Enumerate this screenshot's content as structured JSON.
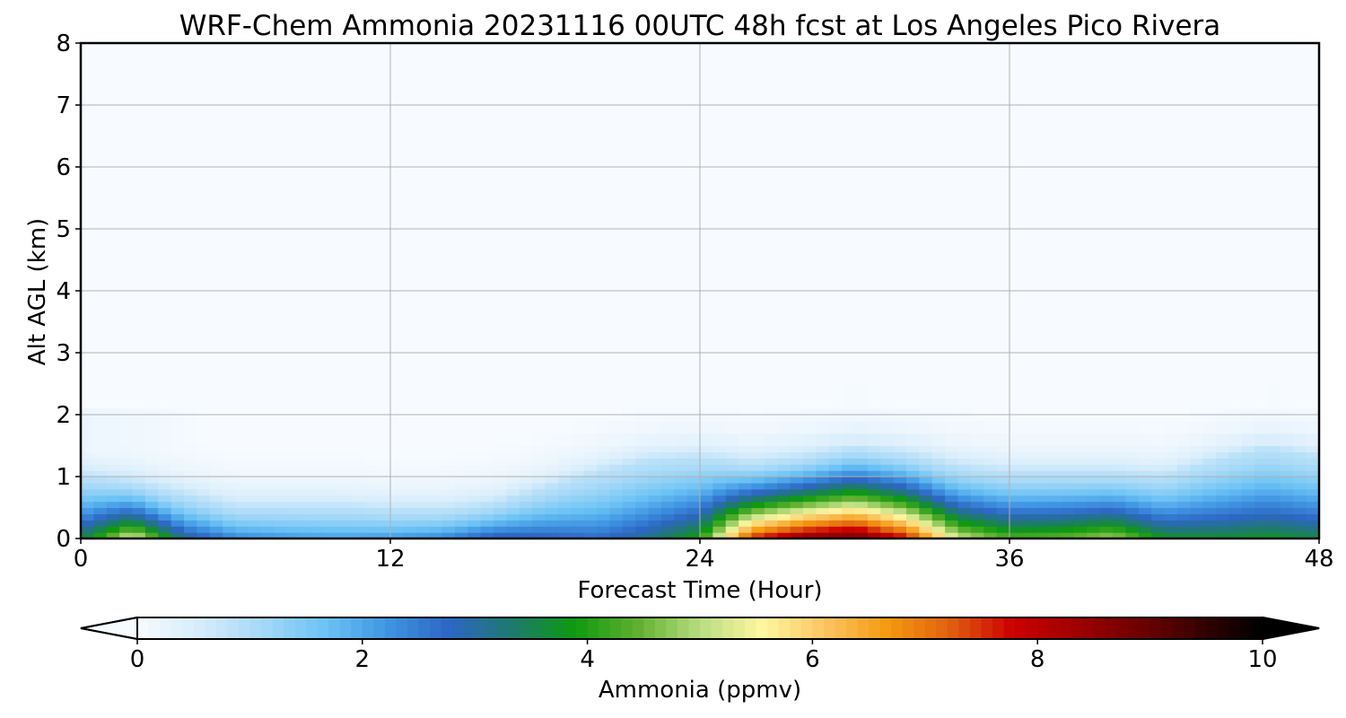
{
  "chart_data": {
    "type": "heatmap",
    "title": "WRF-Chem Ammonia  20231116 00UTC 48h fcst at Los Angeles Pico Rivera",
    "xlabel": "Forecast Time (Hour)",
    "ylabel": "Alt AGL (km)",
    "xlim": [
      0,
      48
    ],
    "ylim": [
      0,
      8
    ],
    "x_ticks": [
      0,
      12,
      24,
      36,
      48
    ],
    "y_ticks": [
      0,
      1,
      2,
      3,
      4,
      5,
      6,
      7,
      8
    ],
    "grid": true,
    "colorbar": {
      "label": "Ammonia  (ppmv)",
      "range": [
        0,
        10
      ],
      "ticks": [
        0,
        2,
        4,
        6,
        8,
        10
      ],
      "extend": "both",
      "colors": [
        "#f7fbff",
        "#d6ecfb",
        "#a5d8f7",
        "#6cc3f5",
        "#3f95e2",
        "#2d66c4",
        "#1e7a6e",
        "#0e9a0e",
        "#60b030",
        "#b8dd80",
        "#fff7a0",
        "#fcc462",
        "#f59a10",
        "#e06010",
        "#cc0000",
        "#a00000",
        "#700000",
        "#380000",
        "#000000"
      ]
    },
    "x": [
      0,
      2,
      4,
      6,
      8,
      10,
      12,
      14,
      16,
      18,
      20,
      22,
      24,
      26,
      28,
      30,
      32,
      34,
      36,
      38,
      40,
      42,
      44,
      46,
      48
    ],
    "y": [
      0,
      0.1,
      0.2,
      0.3,
      0.4,
      0.5,
      0.6,
      0.7,
      0.8,
      0.9,
      1.0,
      1.1,
      1.2,
      1.3,
      1.4,
      1.5,
      1.7,
      1.9,
      2.1,
      2.5,
      3,
      4,
      5,
      6,
      7,
      8
    ],
    "surface_ppmv": [
      3.5,
      5.4,
      3.2,
      2.4,
      2.2,
      2.1,
      2.2,
      2.4,
      3.0,
      2.9,
      2.7,
      3.2,
      4.0,
      7.6,
      8.6,
      9.0,
      7.8,
      5.2,
      4.4,
      4.5,
      4.9,
      3.8,
      3.7,
      3.8,
      3.6
    ],
    "plume_top_km": [
      1.0,
      0.9,
      0.7,
      0.5,
      0.5,
      0.5,
      0.45,
      0.45,
      0.55,
      0.8,
      1.05,
      1.25,
      1.3,
      1.2,
      1.3,
      1.45,
      1.35,
      1.15,
      1.05,
      1.05,
      1.05,
      1.0,
      1.25,
      1.45,
      1.3
    ]
  }
}
